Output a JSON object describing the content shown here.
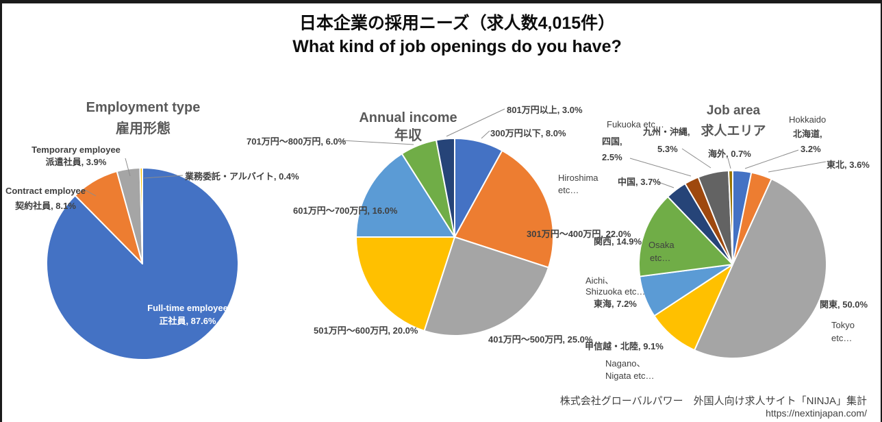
{
  "page": {
    "title_ja": "日本企業の採用ニーズ（求人数4,015件）",
    "title_en": "What kind of job openings do you have?",
    "footer_credit": "株式会社グローバルパワー　外国人向け求人サイト「NINJA」集計",
    "footer_url": "https://nextinjapan.com/"
  },
  "chart_data": [
    {
      "type": "pie",
      "title_en": "Employment type",
      "title_ja": "雇用形態",
      "legend_position": "none",
      "slices": [
        {
          "label": "正社員 (Full-time employee)",
          "value": 87.6,
          "color": "#4472C4"
        },
        {
          "label": "契約社員 (Contract employee)",
          "value": 8.1,
          "color": "#ED7D31"
        },
        {
          "label": "派遣社員 (Temporary employee)",
          "value": 3.9,
          "color": "#A5A5A5"
        },
        {
          "label": "業務委託・アルバイト",
          "value": 0.4,
          "color": "#FFC000"
        }
      ],
      "callouts": {
        "fulltime": [
          "Full-time employee",
          "正社員, 87.6%"
        ],
        "contract": [
          "Contract employee",
          "契約社員, 8.1%"
        ],
        "temporary": [
          "Temporary employee",
          "派遣社員, 3.9%"
        ],
        "outsourcing": [
          "業務委託・アルバイト, 0.4%"
        ]
      }
    },
    {
      "type": "pie",
      "title_en": "Annual income",
      "title_ja": "年収",
      "legend_position": "none",
      "slices": [
        {
          "label": "300万円以下",
          "value": 8.0,
          "color": "#4472C4"
        },
        {
          "label": "301万円～400万円",
          "value": 22.0,
          "color": "#ED7D31"
        },
        {
          "label": "401万円～500万円",
          "value": 25.0,
          "color": "#A5A5A5"
        },
        {
          "label": "501万円～600万円",
          "value": 20.0,
          "color": "#FFC000"
        },
        {
          "label": "601万円～700万円",
          "value": 16.0,
          "color": "#5B9BD5"
        },
        {
          "label": "701万円～800万円",
          "value": 6.0,
          "color": "#70AD47"
        },
        {
          "label": "801万円以上",
          "value": 3.0,
          "color": "#264478"
        }
      ],
      "callouts": {
        "over801": [
          "801万円以上, 3.0%"
        ],
        "under300": [
          "300万円以下, 8.0%"
        ],
        "r301_400": [
          "301万円～400万円, 22.0%"
        ],
        "r401_500": [
          "401万円～500万円, 25.0%"
        ],
        "r501_600": [
          "501万円～600万円, 20.0%"
        ],
        "r601_700": [
          "601万円～700万円, 16.0%"
        ],
        "r701_800": [
          "701万円～800万円, 6.0%"
        ]
      }
    },
    {
      "type": "pie",
      "title_en": "Job area",
      "title_ja": "求人エリア",
      "legend_position": "none",
      "slices": [
        {
          "label": "北海道 (Hokkaido)",
          "value": 3.2,
          "color": "#4472C4"
        },
        {
          "label": "東北",
          "value": 3.6,
          "color": "#ED7D31"
        },
        {
          "label": "関東 (Tokyo etc)",
          "value": 50.0,
          "color": "#A5A5A5"
        },
        {
          "label": "甲信越・北陸 (Nagano, Nigata etc)",
          "value": 9.1,
          "color": "#FFC000"
        },
        {
          "label": "東海 (Aichi, Shizuoka etc)",
          "value": 7.2,
          "color": "#5B9BD5"
        },
        {
          "label": "関西 (Osaka etc)",
          "value": 14.9,
          "color": "#70AD47"
        },
        {
          "label": "中国 (Hiroshima etc)",
          "value": 3.7,
          "color": "#264478"
        },
        {
          "label": "四国",
          "value": 2.5,
          "color": "#9E480E"
        },
        {
          "label": "九州・沖縄 (Fukuoka etc)",
          "value": 5.3,
          "color": "#636363"
        },
        {
          "label": "海外",
          "value": 0.7,
          "color": "#997300"
        }
      ],
      "callouts": {
        "hokkaido": [
          "Hokkaido",
          "北海道,",
          "3.2%"
        ],
        "tohoku": [
          "東北, 3.6%"
        ],
        "kanto": [
          "関東, 50.0%"
        ],
        "tokyo": [
          "Tokyo",
          "etc…"
        ],
        "koshinetsu": [
          "甲信越・北陸, 9.1%"
        ],
        "nagano": [
          "Nagano、",
          "Nigata etc…"
        ],
        "tokai": [
          "東海, 7.2%"
        ],
        "aichi": [
          "Aichi、",
          "Shizuoka etc…"
        ],
        "kansai": [
          "関西, 14.9%"
        ],
        "osaka": [
          "Osaka",
          "etc…"
        ],
        "chugoku": [
          "中国, 3.7%"
        ],
        "hiroshima": [
          "Hiroshima",
          "etc…"
        ],
        "shikoku": [
          "四国,",
          "2.5%"
        ],
        "kyushu": [
          "九州・沖縄,",
          "5.3%"
        ],
        "fukuoka": [
          "Fukuoka etc…"
        ],
        "overseas": [
          "海外, 0.7%"
        ]
      }
    }
  ]
}
